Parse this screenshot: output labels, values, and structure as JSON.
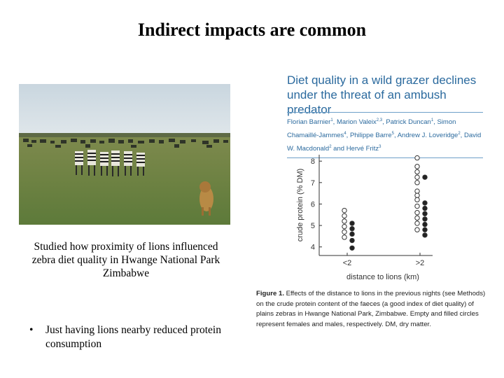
{
  "slide": {
    "title": "Indirect impacts are common",
    "caption": "Studied how proximity of lions influenced zebra diet quality in Hwange National Park Zimbabwe",
    "bullet": "Just having lions nearby reduced protein consumption"
  },
  "photo": {
    "description_icon": "zebras-and-lion-photo"
  },
  "paper": {
    "title": "Diet quality in a wild grazer declines under the threat of an ambush predator",
    "authors": [
      {
        "name": "Florian Barnier",
        "sup": "1"
      },
      {
        "name": "Marion Valeix",
        "sup": "2,3"
      },
      {
        "name": "Patrick Duncan",
        "sup": "1"
      },
      {
        "name": "Simon Chamaillé-Jammes",
        "sup": "4"
      },
      {
        "name": "Philippe Barre",
        "sup": "5"
      },
      {
        "name": "Andrew J. Loveridge",
        "sup": "2"
      },
      {
        "name": "David W. Macdonald",
        "sup": "2"
      },
      {
        "name": "Hervé Fritz",
        "sup": "3"
      }
    ],
    "figure_label": "Figure 1.",
    "figure_caption": "Effects of the distance to lions in the previous nights (see Methods) on the crude protein content of the faeces (a good index of diet quality) of plains zebras in Hwange National Park, Zimbabwe. Empty and filled circles represent females and males, respectively. DM, dry matter."
  },
  "chart_data": {
    "type": "scatter",
    "categories": [
      "<2",
      ">2"
    ],
    "xlabel": "distance to lions (km)",
    "ylabel": "crude protein (% DM)",
    "ylim": [
      3.6,
      8.3
    ],
    "yticks": [
      4,
      5,
      6,
      7,
      8
    ],
    "series": [
      {
        "name": "females",
        "marker": "empty-circle",
        "points": [
          {
            "x": "<2",
            "y": 5.7
          },
          {
            "x": "<2",
            "y": 5.45
          },
          {
            "x": "<2",
            "y": 5.2
          },
          {
            "x": "<2",
            "y": 4.95
          },
          {
            "x": "<2",
            "y": 4.7
          },
          {
            "x": "<2",
            "y": 4.45
          },
          {
            "x": ">2",
            "y": 8.15
          },
          {
            "x": ">2",
            "y": 7.75
          },
          {
            "x": ">2",
            "y": 7.5
          },
          {
            "x": ">2",
            "y": 7.25
          },
          {
            "x": ">2",
            "y": 7.0
          },
          {
            "x": ">2",
            "y": 6.6
          },
          {
            "x": ">2",
            "y": 6.4
          },
          {
            "x": ">2",
            "y": 6.2
          },
          {
            "x": ">2",
            "y": 5.9
          },
          {
            "x": ">2",
            "y": 5.6
          },
          {
            "x": ">2",
            "y": 5.35
          },
          {
            "x": ">2",
            "y": 5.1
          },
          {
            "x": ">2",
            "y": 4.8
          }
        ]
      },
      {
        "name": "males",
        "marker": "filled-circle",
        "points": [
          {
            "x": "<2",
            "y": 5.1
          },
          {
            "x": "<2",
            "y": 4.85
          },
          {
            "x": "<2",
            "y": 4.6
          },
          {
            "x": "<2",
            "y": 4.3
          },
          {
            "x": "<2",
            "y": 3.95
          },
          {
            "x": ">2",
            "y": 7.25
          },
          {
            "x": ">2",
            "y": 6.05
          },
          {
            "x": ">2",
            "y": 5.8
          },
          {
            "x": ">2",
            "y": 5.55
          },
          {
            "x": ">2",
            "y": 5.3
          },
          {
            "x": ">2",
            "y": 5.05
          },
          {
            "x": ">2",
            "y": 4.8
          },
          {
            "x": ">2",
            "y": 4.55
          }
        ]
      }
    ]
  }
}
